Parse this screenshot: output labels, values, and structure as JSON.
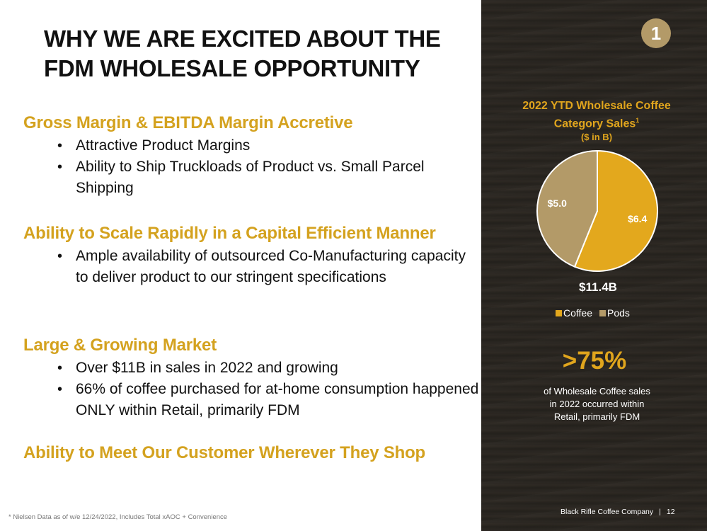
{
  "title": [
    "WHY WE ARE EXCITED ABOUT THE",
    "FDM WHOLESALE OPPORTUNITY"
  ],
  "sections": [
    {
      "heading": "Gross Margin & EBITDA Margin Accretive",
      "bullets": [
        "Attractive Product Margins",
        "Ability to Ship Truckloads of Product vs. Small Parcel Shipping"
      ]
    },
    {
      "heading": "Ability to Scale Rapidly in a Capital Efficient Manner",
      "bullets": [
        "Ample availability of outsourced Co-Manufacturing capacity to deliver product to our stringent specifications"
      ]
    },
    {
      "heading": "Large & Growing Market",
      "bullets": [
        "Over $11B in sales in 2022 and growing",
        "66% of coffee purchased for at-home consumption happened ONLY within Retail, primarily FDM"
      ]
    },
    {
      "heading": "Ability to Meet Our Customer Wherever They Shop",
      "bullets": []
    }
  ],
  "footnote": "* Nielsen Data as of w/e 12/24/2022, Includes Total xAOC + Convenience",
  "badge": "1",
  "chart_title": {
    "line1": "2022 YTD Wholesale Coffee",
    "line2": "Category Sales",
    "superscript": "1",
    "sub": "($ in B)"
  },
  "chart_data": {
    "type": "pie",
    "slices": [
      {
        "label": "Coffee",
        "value": 6.4,
        "display": "$6.4",
        "color": "#e3a81d"
      },
      {
        "label": "Pods",
        "value": 5.0,
        "display": "$5.0",
        "color": "#b39a68"
      }
    ],
    "total_label": "$11.4B",
    "legend_position": "bottom"
  },
  "stat": {
    "value": ">75%",
    "description": [
      "of Wholesale Coffee sales",
      "in 2022 occurred within",
      "Retail, primarily FDM"
    ]
  },
  "company": "Black Rifle Coffee Company",
  "separator": "|",
  "page_number": "12",
  "colors": {
    "accent": "#d4a21f",
    "dark_panel": "#2a2621"
  }
}
